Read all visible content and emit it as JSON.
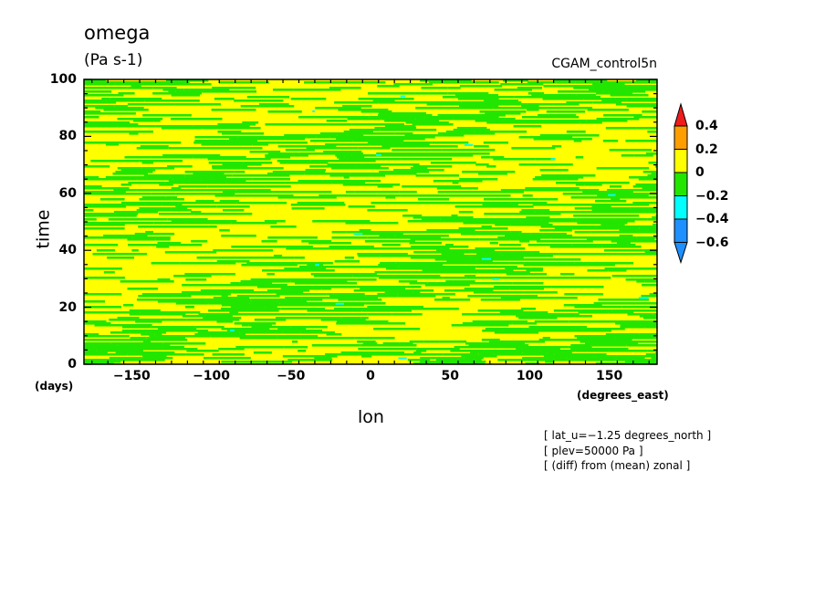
{
  "chart_data": {
    "type": "heatmap",
    "title": "omega",
    "units": "(Pa s-1)",
    "dataset": "CGAM_control5n",
    "xlabel": "lon",
    "xunits": "(degrees_east)",
    "ylabel": "time",
    "yunits": "(days)",
    "xlim": [
      -180,
      180
    ],
    "ylim": [
      0,
      100
    ],
    "xticks": [
      -150,
      -100,
      -50,
      0,
      50,
      100,
      150
    ],
    "xtick_labels": [
      "−150",
      "−100",
      "−50",
      "0",
      "50",
      "100",
      "150"
    ],
    "yticks": [
      0,
      20,
      40,
      60,
      80,
      100
    ],
    "ytick_labels": [
      "0",
      "20",
      "40",
      "60",
      "80",
      "100"
    ],
    "colorbar": {
      "levels": [
        0.4,
        0.2,
        0,
        -0.2,
        -0.4,
        -0.6
      ],
      "level_labels": [
        "0.4",
        "0.2",
        "0",
        "−0.2",
        "−0.4",
        "−0.6"
      ],
      "colors": [
        "#ee1c1c",
        "#ff9e00",
        "#ffff00",
        "#22e600",
        "#00ffff",
        "#1e90ff"
      ]
    },
    "dominant_classes": {
      "positive_0_to_0.2": "#ffff00",
      "negative_-0.2_to_0": "#22e600"
    },
    "notes": [
      "[ lat_u=−1.25 degrees_north ]",
      "[ plev=50000 Pa ]",
      "[ (diff) from (mean) zonal ]"
    ]
  }
}
